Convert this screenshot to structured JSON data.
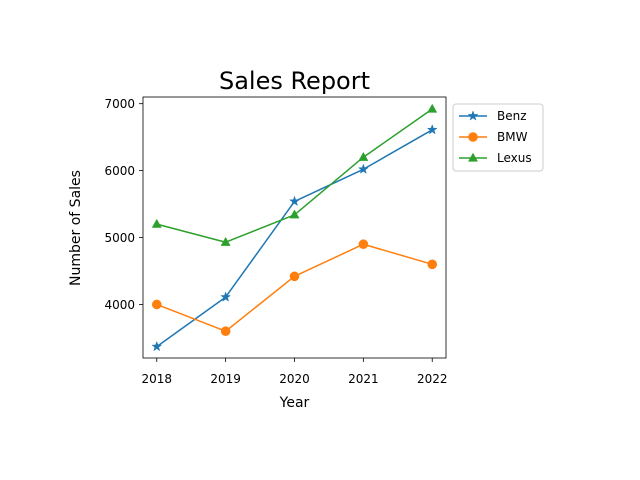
{
  "chart_data": {
    "type": "line",
    "title": "Sales Report",
    "xlabel": "Year",
    "ylabel": "Number of Sales",
    "x": [
      2018,
      2019,
      2020,
      2021,
      2022
    ],
    "xlim": [
      2017.8,
      2022.2
    ],
    "ylim": [
      3200,
      7100
    ],
    "yticks": [
      4000,
      5000,
      6000,
      7000
    ],
    "grid": false,
    "legend_position": "outside upper right",
    "series": [
      {
        "name": "Benz",
        "values": [
          3370,
          4110,
          5540,
          6020,
          6610
        ],
        "color": "#1f77b4",
        "marker": "star"
      },
      {
        "name": "BMW",
        "values": [
          4000,
          3600,
          4420,
          4900,
          4600
        ],
        "color": "#ff7f0e",
        "marker": "circle"
      },
      {
        "name": "Lexus",
        "values": [
          5200,
          4930,
          5340,
          6200,
          6920
        ],
        "color": "#2ca02c",
        "marker": "triangle"
      }
    ]
  }
}
